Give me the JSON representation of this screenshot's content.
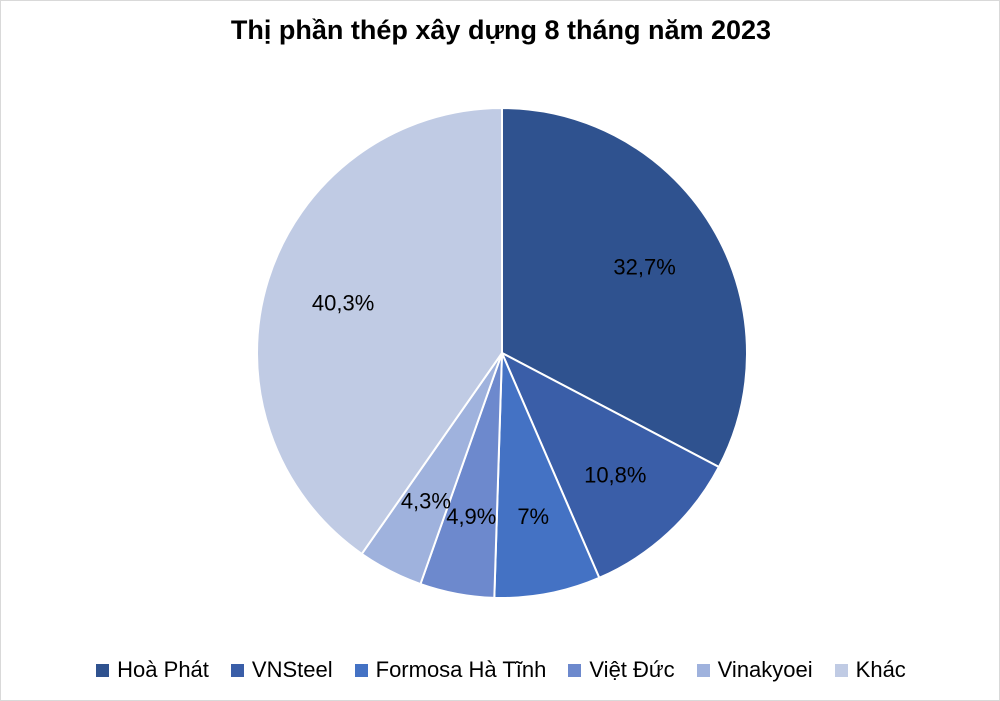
{
  "chart_data": {
    "type": "pie",
    "title": "Thị phần thép xây dựng 8 tháng năm 2023",
    "legend_position": "bottom",
    "slices": [
      {
        "label": "Hoà Phát",
        "value": 32.7,
        "value_label": "32,7%",
        "color": "#2F528F"
      },
      {
        "label": "VNSteel",
        "value": 10.8,
        "value_label": "10,8%",
        "color": "#3A5EA8"
      },
      {
        "label": "Formosa Hà Tĩnh",
        "value": 7.0,
        "value_label": "7%",
        "color": "#4472C4"
      },
      {
        "label": "Việt Đức",
        "value": 4.9,
        "value_label": "4,9%",
        "color": "#6D89CD"
      },
      {
        "label": "Vinakyoei",
        "value": 4.3,
        "value_label": "4,3%",
        "color": "#9FB2DD"
      },
      {
        "label": "Khác",
        "value": 40.3,
        "value_label": "40,3%",
        "color": "#C0CBE4"
      }
    ]
  }
}
